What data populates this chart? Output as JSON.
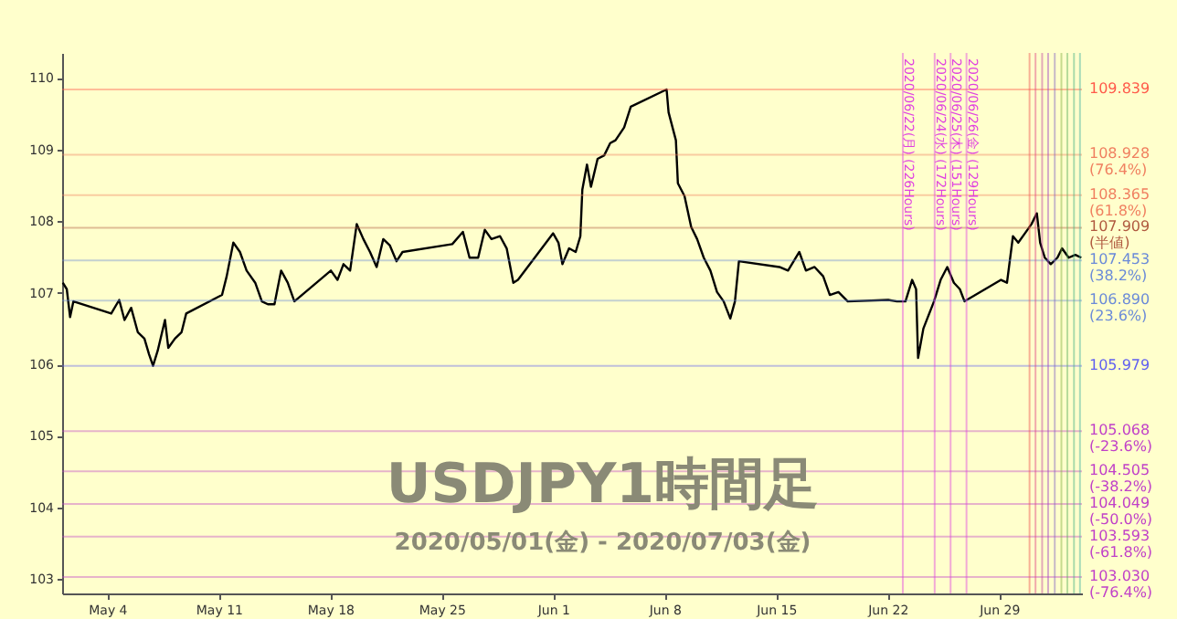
{
  "chart_data": {
    "type": "line",
    "title": "USDJPY1時間足",
    "subtitle": "2020/05/01(金) - 2020/07/03(金)",
    "x": [
      "2020-05-01T05:00",
      "2020-05-01T11:00",
      "2020-05-01T16:00",
      "2020-05-01T21:00",
      "2020-05-04T06:00",
      "2020-05-04T18:00",
      "2020-05-05T02:00",
      "2020-05-05T12:00",
      "2020-05-05T22:00",
      "2020-05-06T08:00",
      "2020-05-06T15:00",
      "2020-05-06T21:00",
      "2020-05-07T04:00",
      "2020-05-07T15:00",
      "2020-05-07T20:00",
      "2020-05-08T06:00",
      "2020-05-08T16:00",
      "2020-05-08T23:00",
      "2020-05-11T05:00",
      "2020-05-11T12:00",
      "2020-05-11T22:00",
      "2020-05-12T08:00",
      "2020-05-12T18:00",
      "2020-05-13T07:00",
      "2020-05-13T17:00",
      "2020-05-14T02:00",
      "2020-05-14T12:00",
      "2020-05-14T22:00",
      "2020-05-15T08:00",
      "2020-05-15T18:00",
      "2020-05-18T01:00",
      "2020-05-18T11:00",
      "2020-05-18T20:00",
      "2020-05-19T06:00",
      "2020-05-19T16:00",
      "2020-05-20T02:00",
      "2020-05-20T12:00",
      "2020-05-20T22:00",
      "2020-05-21T08:00",
      "2020-05-21T18:00",
      "2020-05-22T04:00",
      "2020-05-22T13:00",
      "2020-05-25T03:00",
      "2020-05-25T16:00",
      "2020-05-26T08:00",
      "2020-05-26T18:00",
      "2020-05-27T07:00",
      "2020-05-27T17:00",
      "2020-05-28T03:00",
      "2020-05-28T16:00",
      "2020-05-29T02:00",
      "2020-05-29T12:00",
      "2020-05-29T19:00",
      "2020-06-01T00:00",
      "2020-06-01T08:00",
      "2020-06-01T14:00",
      "2020-06-02T00:00",
      "2020-06-02T10:00",
      "2020-06-02T17:00",
      "2020-06-02T20:00",
      "2020-06-03T03:00",
      "2020-06-03T09:00",
      "2020-06-03T19:00",
      "2020-06-04T05:00",
      "2020-06-04T14:00",
      "2020-06-04T22:00",
      "2020-06-05T11:00",
      "2020-06-05T21:00",
      "2020-06-08T03:00",
      "2020-06-08T06:00",
      "2020-06-08T17:00",
      "2020-06-08T20:00",
      "2020-06-09T06:00",
      "2020-06-09T16:00",
      "2020-06-10T01:00",
      "2020-06-10T11:00",
      "2020-06-10T21:00",
      "2020-06-11T07:00",
      "2020-06-11T17:00",
      "2020-06-12T03:00",
      "2020-06-12T10:00",
      "2020-06-12T16:00",
      "2020-06-15T05:00",
      "2020-06-15T18:00",
      "2020-06-16T11:00",
      "2020-06-16T21:00",
      "2020-06-17T10:00",
      "2020-06-17T23:00",
      "2020-06-18T09:00",
      "2020-06-18T22:00",
      "2020-06-19T12:00",
      "2020-06-22T01:00",
      "2020-06-22T14:00",
      "2020-06-23T03:00",
      "2020-06-23T13:00",
      "2020-06-23T19:00",
      "2020-06-23T22:00",
      "2020-06-24T06:00",
      "2020-06-24T22:00",
      "2020-06-25T08:00",
      "2020-06-25T18:00",
      "2020-06-26T04:00",
      "2020-06-26T13:00",
      "2020-06-26T20:00",
      "2020-06-29T03:00",
      "2020-06-29T12:00",
      "2020-06-29T21:00",
      "2020-06-30T05:00",
      "2020-06-30T15:00",
      "2020-07-01T01:00",
      "2020-07-01T09:00",
      "2020-07-01T14:00",
      "2020-07-01T21:00",
      "2020-07-02T06:00",
      "2020-07-02T16:00",
      "2020-07-02T23:00",
      "2020-07-03T09:00",
      "2020-07-03T19:00",
      "2020-07-04T04:00"
    ],
    "series": [
      {
        "color": "#000000",
        "values": [
          107.14,
          107.05,
          106.66,
          106.88,
          106.71,
          106.9,
          106.62,
          106.79,
          106.45,
          106.36,
          106.14,
          105.98,
          106.19,
          106.62,
          106.23,
          106.36,
          106.45,
          106.71,
          106.97,
          107.23,
          107.7,
          107.57,
          107.31,
          107.14,
          106.88,
          106.84,
          106.84,
          107.31,
          107.14,
          106.88,
          107.31,
          107.18,
          107.4,
          107.31,
          107.96,
          107.75,
          107.57,
          107.36,
          107.75,
          107.66,
          107.44,
          107.57,
          107.66,
          107.68,
          107.85,
          107.49,
          107.49,
          107.88,
          107.75,
          107.79,
          107.62,
          107.14,
          107.18,
          107.83,
          107.7,
          107.4,
          107.62,
          107.57,
          107.79,
          108.44,
          108.79,
          108.48,
          108.87,
          108.92,
          109.09,
          109.13,
          109.31,
          109.6,
          109.84,
          109.52,
          109.13,
          108.53,
          108.35,
          107.92,
          107.75,
          107.49,
          107.31,
          107.01,
          106.88,
          106.64,
          106.88,
          107.44,
          107.36,
          107.31,
          107.57,
          107.31,
          107.36,
          107.23,
          106.97,
          107.01,
          106.88,
          106.9,
          106.88,
          106.88,
          107.18,
          107.05,
          106.09,
          106.5,
          106.88,
          107.18,
          107.36,
          107.14,
          107.05,
          106.88,
          107.18,
          107.14,
          107.79,
          107.7,
          107.83,
          107.96,
          108.11,
          107.7,
          107.49,
          107.4,
          107.49,
          107.62,
          107.49,
          107.53,
          107.49
        ]
      }
    ],
    "xlim": [
      "2020-05-01T04:00",
      "2020-07-04T05:00"
    ],
    "ylim": [
      102.8,
      110.35
    ],
    "xticks": [
      {
        "value": "2020-05-04",
        "label": "May 4"
      },
      {
        "value": "2020-05-11",
        "label": "May 11"
      },
      {
        "value": "2020-05-18",
        "label": "May 18"
      },
      {
        "value": "2020-05-25",
        "label": "May 25"
      },
      {
        "value": "2020-06-01",
        "label": "Jun 1"
      },
      {
        "value": "2020-06-08",
        "label": "Jun 8"
      },
      {
        "value": "2020-06-15",
        "label": "Jun 15"
      },
      {
        "value": "2020-06-22",
        "label": "Jun 22"
      },
      {
        "value": "2020-06-29",
        "label": "Jun 29"
      }
    ],
    "yticks": [
      103,
      104,
      105,
      106,
      107,
      108,
      109,
      110
    ],
    "grid": false,
    "marker": "none",
    "line_style": "solid",
    "ref_lines": [
      {
        "axis": "y",
        "value": 109.839,
        "label": "109.839",
        "color": "#ff5a4a"
      },
      {
        "axis": "y",
        "value": 108.928,
        "label": "108.928\n(76.4%)",
        "color": "#f08060"
      },
      {
        "axis": "y",
        "value": 108.365,
        "label": "108.365\n(61.8%)",
        "color": "#f08060"
      },
      {
        "axis": "y",
        "value": 107.909,
        "label": "107.909\n(半値)",
        "color": "#b05a40"
      },
      {
        "axis": "y",
        "value": 107.453,
        "label": "107.453\n(38.2%)",
        "color": "#6a8ad8"
      },
      {
        "axis": "y",
        "value": 106.89,
        "label": "106.890\n(23.6%)",
        "color": "#6a8ad8"
      },
      {
        "axis": "y",
        "value": 105.979,
        "label": "105.979",
        "color": "#6060f0"
      },
      {
        "axis": "y",
        "value": 105.068,
        "label": "105.068\n(-23.6%)",
        "color": "#c040c8"
      },
      {
        "axis": "y",
        "value": 104.505,
        "label": "104.505\n(-38.2%)",
        "color": "#c040c8"
      },
      {
        "axis": "y",
        "value": 104.049,
        "label": "104.049\n(-50.0%)",
        "color": "#c040c8"
      },
      {
        "axis": "y",
        "value": 103.593,
        "label": "103.593\n(-61.8%)",
        "color": "#c040c8"
      },
      {
        "axis": "y",
        "value": 103.03,
        "label": "103.030\n(-76.4%)",
        "color": "#c040c8"
      },
      {
        "axis": "x",
        "value": "2020-06-22T23:00",
        "label": "2020/06/22(月) (226Hours)",
        "color": "#e040e0"
      },
      {
        "axis": "x",
        "value": "2020-06-24T23:00",
        "label": "2020/06/24(水) (172Hours)",
        "color": "#e040e0"
      },
      {
        "axis": "x",
        "value": "2020-06-25T23:00",
        "label": "2020/06/25(木) (151Hours)",
        "color": "#e040e0"
      },
      {
        "axis": "x",
        "value": "2020-06-26T23:00",
        "label": "2020/06/26(金) (129Hours)",
        "color": "#e040e0"
      },
      {
        "axis": "x",
        "value": "2020-06-30T22:00",
        "label": null,
        "color": "#f05050"
      },
      {
        "axis": "x",
        "value": "2020-07-01T07:00",
        "label": null,
        "color": "#e04080"
      },
      {
        "axis": "x",
        "value": "2020-07-01T17:00",
        "label": null,
        "color": "#c040a0"
      },
      {
        "axis": "x",
        "value": "2020-07-02T02:00",
        "label": null,
        "color": "#a040c0"
      },
      {
        "axis": "x",
        "value": "2020-07-02T12:00",
        "label": null,
        "color": "#8060c0"
      },
      {
        "axis": "x",
        "value": "2020-07-02T22:00",
        "label": null,
        "color": "#80b040"
      },
      {
        "axis": "x",
        "value": "2020-07-03T07:00",
        "label": null,
        "color": "#60b060"
      },
      {
        "axis": "x",
        "value": "2020-07-03T17:00",
        "label": null,
        "color": "#40b080"
      },
      {
        "axis": "x",
        "value": "2020-07-04T02:00",
        "label": null,
        "color": "#40b0a0"
      }
    ]
  }
}
